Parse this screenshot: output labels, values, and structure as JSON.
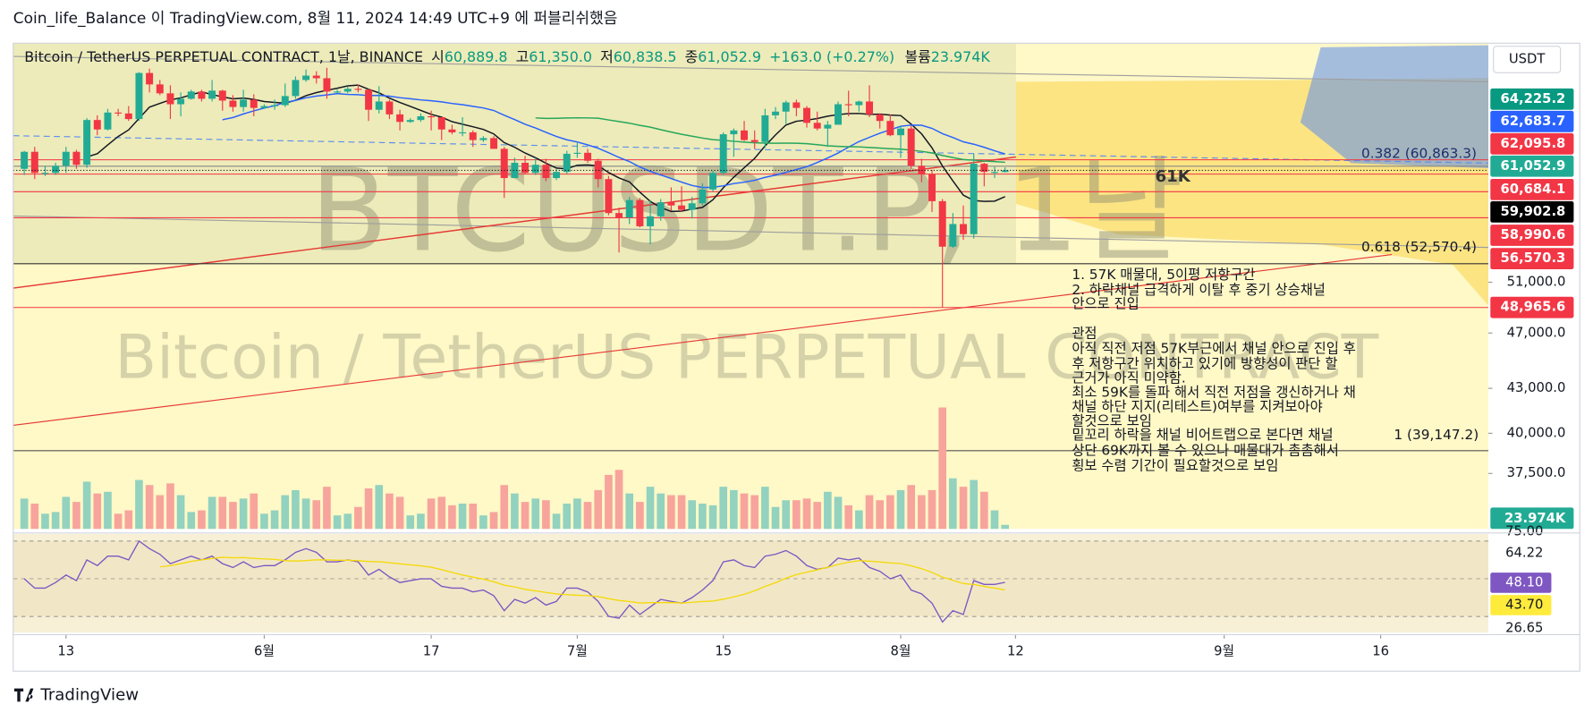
{
  "header": "Coin_life_Balance 이 TradingView.com, 8월 11, 2024 14:49 UTC+9 에 퍼블리쉬했음",
  "legend": {
    "symbol": "Bitcoin / TetherUS PERPETUAL CONTRACT, 1날, BINANCE",
    "items": [
      {
        "label": "시",
        "value": "60,889.8"
      },
      {
        "label": "고",
        "value": "61,350.0"
      },
      {
        "label": "저",
        "value": "60,838.5"
      },
      {
        "label": "종",
        "value": "61,052.9"
      }
    ],
    "change": "+163.0 (+0.27%)",
    "volume_label": "볼륨",
    "volume": "23.974K"
  },
  "watermark": {
    "symbol": "BTCUSDT.P, 1날",
    "name": "Bitcoin / TetherUS PERPETUAL CONTRACT"
  },
  "currency": "USDT",
  "footer": "TradingView",
  "annotations": {
    "fib_382": "0.382 (60,863.3)",
    "level_61k": "61K",
    "fib_618": "0.618 (52,570.4)",
    "fib_1": "1 (39,147.2)"
  },
  "notes": [
    "1. 57K 매물대, 5이평 저항구간",
    "2. 하락채널 급격하게 이탈 후 중기 상승채널",
    "안으로 진입",
    "관점",
    "아직 직전 저점 57K부근에서 채널 안으로 진입 후",
    "후 저항구간 위치하고 있기에 방향성이 판단 할",
    "근거가 아직 미약함.",
    "최소 59K를 돌파 해서 직전 저점을 갱신하거나 채",
    "채널  하단 지지(리테스트)여부를 지켜보아야",
    "할것으로 보임",
    "밑꼬리 하락을 채널 비어트랩으로 본다면 채널",
    "상단 69K까지 볼 수 있으나 매물대가 촘촘해서",
    "횡보 수렴 기간이 필요할것으로 보임"
  ],
  "chart_data": {
    "type": "candlestick",
    "log_scale": true,
    "up_color": "#22ab94",
    "down_color": "#f23645",
    "ylim": [
      34300,
      74900
    ],
    "yticks": [
      {
        "value": 37500,
        "label": "37,500.0"
      },
      {
        "value": 40000,
        "label": "40,000.0"
      },
      {
        "value": 43000,
        "label": "43,000.0"
      },
      {
        "value": 47000,
        "label": "47,000.0"
      },
      {
        "value": 51000,
        "label": "51,000.0"
      }
    ],
    "xlim": [
      -1.06,
      140.32
    ],
    "xticks": [
      {
        "value": 4,
        "label": "13"
      },
      {
        "value": 23,
        "label": "6월"
      },
      {
        "value": 39,
        "label": "17"
      },
      {
        "value": 53,
        "label": "7월"
      },
      {
        "value": 67,
        "label": "15"
      },
      {
        "value": 84,
        "label": "8월"
      },
      {
        "value": 95,
        "label": "12"
      },
      {
        "value": 115,
        "label": "9월"
      },
      {
        "value": 130,
        "label": "16"
      }
    ],
    "ohlc": [
      [
        61200,
        63000,
        60600,
        62900
      ],
      [
        62900,
        63400,
        60200,
        60800
      ],
      [
        60800,
        61500,
        60500,
        60800
      ],
      [
        60800,
        61800,
        60600,
        61500
      ],
      [
        61500,
        63400,
        60800,
        62900
      ],
      [
        62900,
        63100,
        61200,
        61600
      ],
      [
        61600,
        66400,
        61300,
        66200
      ],
      [
        66200,
        66700,
        64600,
        65200
      ],
      [
        65200,
        67400,
        65100,
        67000
      ],
      [
        67000,
        67400,
        66600,
        66900
      ],
      [
        66900,
        67700,
        66100,
        66300
      ],
      [
        66300,
        71500,
        66100,
        71400
      ],
      [
        71400,
        71900,
        69200,
        70100
      ],
      [
        70100,
        70600,
        68900,
        69100
      ],
      [
        69100,
        70000,
        66300,
        67900
      ],
      [
        67900,
        69200,
        66600,
        68500
      ],
      [
        68500,
        69500,
        68400,
        69300
      ],
      [
        69300,
        69500,
        68200,
        68500
      ],
      [
        68500,
        70600,
        68200,
        69400
      ],
      [
        69400,
        69500,
        67200,
        68300
      ],
      [
        68300,
        68900,
        67100,
        67600
      ],
      [
        67600,
        69500,
        67100,
        68400
      ],
      [
        68400,
        69000,
        66600,
        67500
      ],
      [
        67500,
        67900,
        67400,
        67700
      ],
      [
        67700,
        68400,
        67300,
        67800
      ],
      [
        67800,
        70200,
        67600,
        68800
      ],
      [
        68800,
        71000,
        68500,
        70600
      ],
      [
        70600,
        71800,
        70400,
        71100
      ],
      [
        71100,
        71600,
        70200,
        70800
      ],
      [
        70800,
        72000,
        68500,
        69300
      ],
      [
        69300,
        69500,
        69100,
        69300
      ],
      [
        69300,
        69900,
        69100,
        69600
      ],
      [
        69600,
        70100,
        69200,
        69500
      ],
      [
        69500,
        69600,
        66100,
        67300
      ],
      [
        67300,
        69900,
        66900,
        68200
      ],
      [
        68200,
        68400,
        66300,
        66800
      ],
      [
        66800,
        67300,
        65100,
        66000
      ],
      [
        66000,
        66400,
        65900,
        66200
      ],
      [
        66200,
        66900,
        66000,
        66600
      ],
      [
        66600,
        67200,
        65100,
        66500
      ],
      [
        66500,
        66500,
        64100,
        65200
      ],
      [
        65200,
        65700,
        64700,
        64900
      ],
      [
        64900,
        66500,
        64500,
        64900
      ],
      [
        64900,
        65100,
        63400,
        64100
      ],
      [
        64100,
        64500,
        63900,
        64300
      ],
      [
        64300,
        64500,
        63200,
        63200
      ],
      [
        63200,
        63400,
        58400,
        60300
      ],
      [
        60300,
        62300,
        60300,
        61800
      ],
      [
        61800,
        62500,
        60700,
        60800
      ],
      [
        60800,
        62300,
        60600,
        61600
      ],
      [
        61600,
        62200,
        60000,
        60300
      ],
      [
        60300,
        61200,
        60100,
        60900
      ],
      [
        60900,
        63000,
        60700,
        62700
      ],
      [
        62700,
        63800,
        62300,
        62800
      ],
      [
        62800,
        63200,
        61800,
        62000
      ],
      [
        62000,
        62200,
        59400,
        60200
      ],
      [
        60200,
        60500,
        56800,
        57000
      ],
      [
        57000,
        57500,
        53500,
        56600
      ],
      [
        56600,
        58500,
        56000,
        58200
      ],
      [
        58200,
        58400,
        55700,
        55800
      ],
      [
        55800,
        58200,
        54200,
        56700
      ],
      [
        56700,
        58300,
        56300,
        58000
      ],
      [
        58000,
        59400,
        57200,
        57700
      ],
      [
        57700,
        59500,
        57100,
        57300
      ],
      [
        57300,
        58500,
        56500,
        57900
      ],
      [
        57900,
        59800,
        57700,
        59200
      ],
      [
        59200,
        61000,
        59000,
        60800
      ],
      [
        60800,
        64900,
        60600,
        64700
      ],
      [
        64700,
        65300,
        62400,
        65100
      ],
      [
        65100,
        66100,
        64000,
        64100
      ],
      [
        64100,
        65100,
        63200,
        63900
      ],
      [
        63900,
        67400,
        63300,
        66700
      ],
      [
        66700,
        67600,
        66300,
        67100
      ],
      [
        67100,
        68300,
        65800,
        68100
      ],
      [
        68100,
        68400,
        66600,
        67500
      ],
      [
        67500,
        67700,
        65400,
        65900
      ],
      [
        65900,
        67100,
        65100,
        65300
      ],
      [
        65300,
        66100,
        63400,
        65700
      ],
      [
        65700,
        68200,
        65700,
        67900
      ],
      [
        67900,
        69400,
        66600,
        67800
      ],
      [
        67800,
        68300,
        67100,
        68200
      ],
      [
        68200,
        70000,
        66500,
        66800
      ],
      [
        66800,
        66900,
        65300,
        66100
      ],
      [
        66100,
        66800,
        64500,
        64600
      ],
      [
        64600,
        65600,
        62300,
        65300
      ],
      [
        65300,
        65600,
        61200,
        61500
      ],
      [
        61500,
        62200,
        59900,
        60700
      ],
      [
        60700,
        61100,
        57100,
        58100
      ],
      [
        58100,
        58300,
        49000,
        54000
      ],
      [
        54000,
        57000,
        53900,
        56000
      ],
      [
        56000,
        57700,
        54600,
        55100
      ],
      [
        55100,
        62700,
        54700,
        61700
      ],
      [
        61700,
        61800,
        59500,
        60900
      ],
      [
        60900,
        61400,
        60300,
        60900
      ],
      [
        60889.8,
        61350,
        60838.5,
        61052.9
      ]
    ],
    "moving_averages": [
      {
        "period": 7,
        "color": "#131722"
      },
      {
        "period": 20,
        "color": "#2962ff"
      },
      {
        "period": 50,
        "color": "#26a65b"
      }
    ],
    "volume": [
      180000,
      150000,
      90000,
      100000,
      190000,
      160000,
      280000,
      210000,
      220000,
      90000,
      110000,
      290000,
      260000,
      200000,
      270000,
      200000,
      100000,
      110000,
      190000,
      190000,
      160000,
      180000,
      210000,
      90000,
      110000,
      200000,
      230000,
      180000,
      170000,
      250000,
      80000,
      90000,
      130000,
      240000,
      260000,
      210000,
      190000,
      80000,
      90000,
      180000,
      190000,
      140000,
      150000,
      150000,
      80000,
      100000,
      260000,
      210000,
      160000,
      180000,
      170000,
      90000,
      150000,
      180000,
      160000,
      230000,
      320000,
      350000,
      210000,
      160000,
      250000,
      210000,
      200000,
      200000,
      170000,
      150000,
      140000,
      250000,
      230000,
      210000,
      200000,
      250000,
      130000,
      170000,
      170000,
      180000,
      160000,
      220000,
      190000,
      140000,
      110000,
      200000,
      170000,
      200000,
      230000,
      260000,
      200000,
      230000,
      720000,
      300000,
      250000,
      290000,
      220000,
      110000,
      23974
    ],
    "volume_lim": [
      0,
      2880000
    ],
    "volume_up_color": "#92d2bf",
    "volume_down_color": "#f7a49c",
    "price_labels": [
      {
        "value": 64225.2,
        "label": "64,225.2",
        "color": "#089981"
      },
      {
        "value": 62683.7,
        "label": "62,683.7",
        "color": "#2962ff"
      },
      {
        "value": 62095.8,
        "label": "62,095.8",
        "color": "#f23645"
      },
      {
        "value": 61052.9,
        "label": "61,052.9",
        "color": "#22ab94"
      },
      {
        "value": 60684.1,
        "label": "60,684.1",
        "color": "#f23645"
      },
      {
        "value": 59902.8,
        "label": "59,902.8",
        "color": "#000000"
      },
      {
        "value": 58990.6,
        "label": "58,990.6",
        "color": "#f23645"
      },
      {
        "value": 56570.3,
        "label": "56,570.3",
        "color": "#f23645"
      },
      {
        "value": 48965.6,
        "label": "48,965.6",
        "color": "#f23645"
      }
    ],
    "volume_value_label": "23.974K",
    "rsi": [
      50,
      45,
      45,
      48,
      52,
      49,
      60,
      57,
      62,
      62,
      60,
      70,
      66,
      63,
      58,
      60,
      62,
      60,
      62,
      58,
      56,
      59,
      56,
      57,
      57,
      60,
      64,
      66,
      64,
      59,
      59,
      60,
      59,
      52,
      55,
      51,
      48,
      49,
      50,
      50,
      46,
      45,
      45,
      43,
      44,
      41,
      33,
      39,
      37,
      40,
      36,
      38,
      45,
      45,
      43,
      38,
      30,
      29,
      36,
      31,
      35,
      39,
      38,
      37,
      40,
      44,
      49,
      59,
      60,
      57,
      56,
      62,
      63,
      65,
      62,
      57,
      55,
      56,
      61,
      60,
      61,
      56,
      54,
      50,
      52,
      44,
      42,
      37,
      27,
      33,
      31,
      49,
      47,
      47,
      48.1
    ],
    "rsi_color": "#7e57c2",
    "rsi_ma": {
      "period": 14,
      "color": "#f5d90a"
    },
    "rsi_lim": [
      21.4,
      73.8
    ],
    "rsi_levels": [
      30,
      50,
      70
    ],
    "rsi_labels": [
      {
        "label": "75.00"
      },
      {
        "label": "64.22"
      },
      {
        "label": "48.10",
        "color": "#7e57c2"
      },
      {
        "label": "43.70",
        "color": "#ffeb3b"
      },
      {
        "label": "26.65"
      }
    ]
  }
}
